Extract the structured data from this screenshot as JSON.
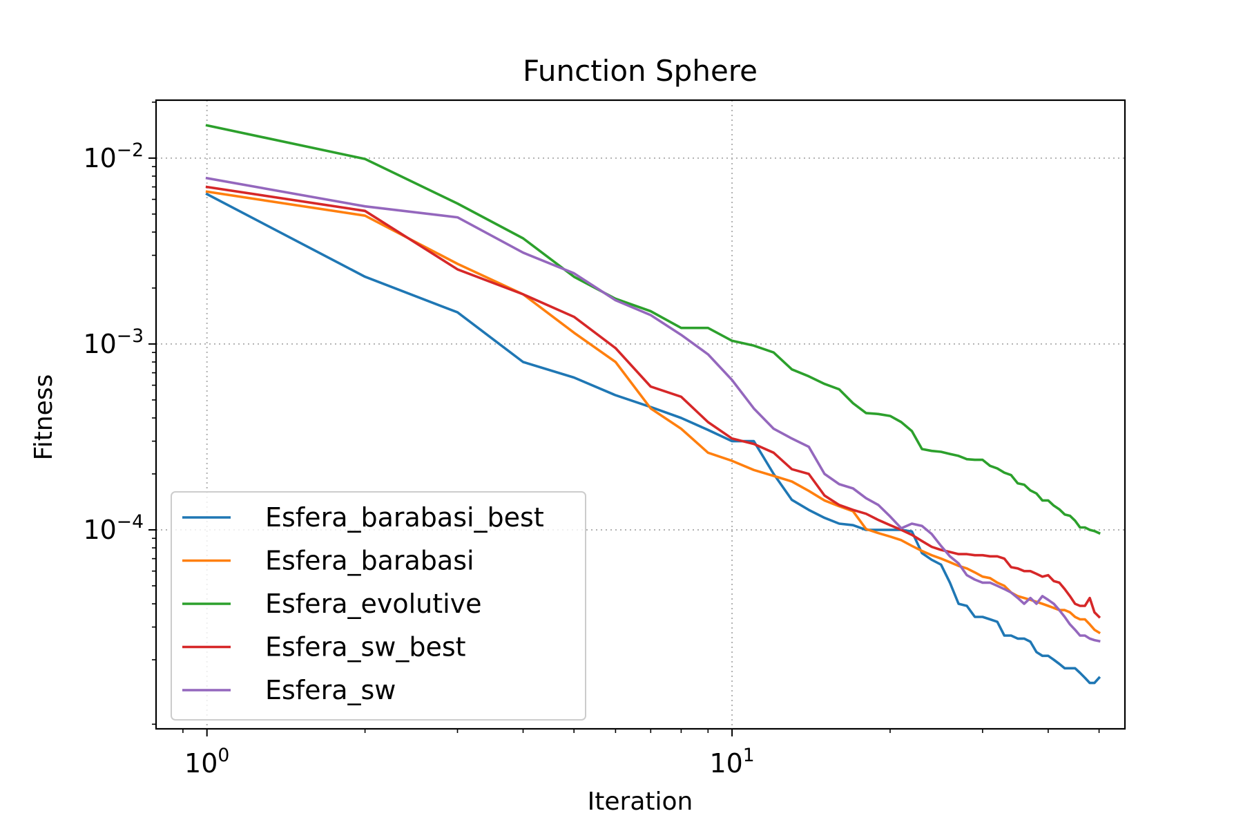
{
  "chart_data": {
    "type": "line",
    "title": "Function Sphere",
    "xlabel": "Iteration",
    "ylabel": "Fitness",
    "xscale": "log",
    "yscale": "log",
    "xlim": [
      0.8,
      56
    ],
    "ylim": [
      8.5e-06,
      0.0205
    ],
    "grid": true,
    "legend_position": "lower-left",
    "x_ticks": [
      {
        "value": 1,
        "base": "10",
        "exp": "0"
      },
      {
        "value": 10,
        "base": "10",
        "exp": "1"
      }
    ],
    "y_ticks": [
      {
        "value": 0.01,
        "base": "10",
        "exp": "−2"
      },
      {
        "value": 0.001,
        "base": "10",
        "exp": "−3"
      },
      {
        "value": 0.0001,
        "base": "10",
        "exp": "−4"
      }
    ],
    "x": [
      1,
      2,
      3,
      4,
      5,
      6,
      7,
      8,
      9,
      10,
      11,
      12,
      13,
      14,
      15,
      16,
      17,
      18,
      19,
      20,
      21,
      22,
      23,
      24,
      25,
      26,
      27,
      28,
      29,
      30,
      31,
      32,
      33,
      34,
      35,
      36,
      37,
      38,
      39,
      40,
      41,
      42,
      43,
      44,
      45,
      46,
      47,
      48,
      49,
      50
    ],
    "series": [
      {
        "name": "Esfera_barabasi_best",
        "color": "#1f77b4",
        "values": [
          0.0064,
          0.0023,
          0.00148,
          0.0008,
          0.00066,
          0.00053,
          0.000458,
          0.0004,
          0.000345,
          0.0003,
          0.0003,
          0.0002,
          0.000145,
          0.000128,
          0.000116,
          0.000108,
          0.000106,
          0.0001,
          0.0001,
          0.0001,
          0.0001,
          9.8e-05,
          7.5e-05,
          6.9e-05,
          6.5e-05,
          5.2e-05,
          4e-05,
          3.9e-05,
          3.4e-05,
          3.4e-05,
          3.3e-05,
          3.2e-05,
          2.7e-05,
          2.7e-05,
          2.6e-05,
          2.6e-05,
          2.5e-05,
          2.2e-05,
          2.1e-05,
          2.1e-05,
          2e-05,
          1.9e-05,
          1.8e-05,
          1.8e-05,
          1.8e-05,
          1.7e-05,
          1.6e-05,
          1.5e-05,
          1.5e-05,
          1.6e-05
        ]
      },
      {
        "name": "Esfera_barabasi",
        "color": "#ff7f0e",
        "values": [
          0.0066,
          0.0049,
          0.0027,
          0.00185,
          0.00115,
          0.0008,
          0.00045,
          0.00035,
          0.00026,
          0.000235,
          0.00021,
          0.000195,
          0.000182,
          0.000162,
          0.000144,
          0.000134,
          0.000126,
          0.000101,
          9.6e-05,
          9.2e-05,
          8.8e-05,
          8.2e-05,
          7.7e-05,
          7.3e-05,
          7e-05,
          6.7e-05,
          6.4e-05,
          6.2e-05,
          5.9e-05,
          5.6e-05,
          5.5e-05,
          5.2e-05,
          5e-05,
          4.6e-05,
          4.4e-05,
          4.3e-05,
          4.2e-05,
          4.1e-05,
          4e-05,
          3.9e-05,
          3.8e-05,
          3.7e-05,
          3.7e-05,
          3.6e-05,
          3.4e-05,
          3.3e-05,
          3.3e-05,
          3.1e-05,
          2.9e-05,
          2.8e-05
        ]
      },
      {
        "name": "Esfera_evolutive",
        "color": "#2ca02c",
        "values": [
          0.015,
          0.0099,
          0.0057,
          0.0037,
          0.0023,
          0.00175,
          0.0015,
          0.00122,
          0.00122,
          0.00104,
          0.00098,
          0.0009,
          0.00073,
          0.00067,
          0.00061,
          0.00057,
          0.00048,
          0.000425,
          0.00042,
          0.00041,
          0.00038,
          0.00034,
          0.000272,
          0.000266,
          0.000263,
          0.000256,
          0.00025,
          0.00024,
          0.000238,
          0.000238,
          0.000221,
          0.000214,
          0.000203,
          0.000197,
          0.000178,
          0.000175,
          0.000163,
          0.000157,
          0.000144,
          0.000144,
          0.000135,
          0.000129,
          0.000121,
          0.000119,
          0.000112,
          0.000103,
          0.000103,
          0.0001,
          9.85e-05,
          9.6e-05
        ]
      },
      {
        "name": "Esfera_sw_best",
        "color": "#d62728",
        "values": [
          0.007,
          0.0052,
          0.00252,
          0.00185,
          0.0014,
          0.00095,
          0.00059,
          0.00052,
          0.00038,
          0.00031,
          0.00029,
          0.00026,
          0.000212,
          0.0002,
          0.000153,
          0.000136,
          0.000128,
          0.000122,
          0.000113,
          0.000106,
          0.0001,
          9.4e-05,
          8.7e-05,
          8.1e-05,
          7.8e-05,
          7.6e-05,
          7.4e-05,
          7.4e-05,
          7.3e-05,
          7.3e-05,
          7.2e-05,
          7.2e-05,
          7e-05,
          6.3e-05,
          6.2e-05,
          6e-05,
          6e-05,
          5.8e-05,
          5.6e-05,
          5.7e-05,
          5.3e-05,
          5.2e-05,
          4.8e-05,
          4.4e-05,
          4e-05,
          3.9e-05,
          3.9e-05,
          4.3e-05,
          3.6e-05,
          3.4e-05
        ]
      },
      {
        "name": "Esfera_sw",
        "color": "#9467bd",
        "values": [
          0.0078,
          0.0055,
          0.0048,
          0.0031,
          0.0024,
          0.00172,
          0.00143,
          0.00112,
          0.00088,
          0.00064,
          0.00045,
          0.00035,
          0.00031,
          0.00028,
          0.0002,
          0.000176,
          0.000167,
          0.000148,
          0.000136,
          0.000118,
          0.000102,
          0.000108,
          0.000105,
          9.5e-05,
          8.2e-05,
          7.2e-05,
          6.6e-05,
          5.7e-05,
          5.4e-05,
          5.2e-05,
          5.2e-05,
          5e-05,
          4.8e-05,
          4.6e-05,
          4.3e-05,
          4e-05,
          4.3e-05,
          4e-05,
          4.4e-05,
          4.2e-05,
          4e-05,
          3.7e-05,
          3.4e-05,
          3.1e-05,
          2.9e-05,
          2.7e-05,
          2.7e-05,
          2.6e-05,
          2.55e-05,
          2.52e-05
        ]
      }
    ]
  }
}
